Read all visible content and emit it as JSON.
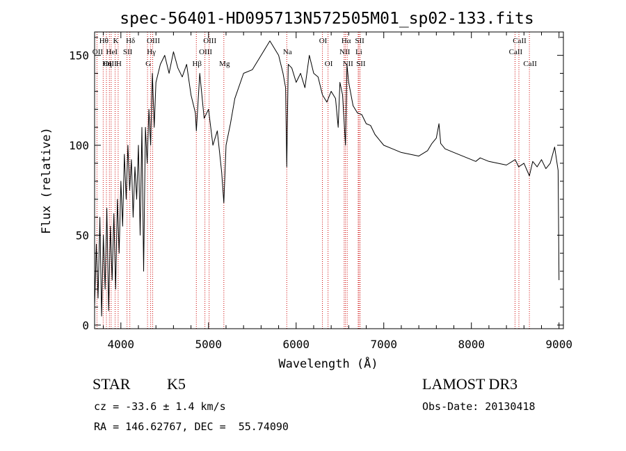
{
  "chart_data": {
    "type": "line",
    "title": "spec-56401-HD095713N572505M01_sp02-133.fits",
    "xlabel": "Wavelength (Å)",
    "ylabel": "Flux (relative)",
    "xlim": [
      3700,
      9050
    ],
    "ylim": [
      -2,
      163
    ],
    "xticks": [
      4000,
      5000,
      6000,
      7000,
      8000,
      9000
    ],
    "yticks": [
      0,
      50,
      100,
      150
    ],
    "line_color": "#000000",
    "marker_color": "#cc0000",
    "series": [
      {
        "x": [
          3700,
          3720,
          3740,
          3760,
          3780,
          3800,
          3820,
          3840,
          3860,
          3880,
          3900,
          3920,
          3940,
          3960,
          3980,
          4000,
          4020,
          4040,
          4060,
          4080,
          4100,
          4120,
          4140,
          4160,
          4180,
          4200,
          4220,
          4240,
          4260,
          4280,
          4300,
          4320,
          4340,
          4360,
          4380,
          4400,
          4450,
          4500,
          4550,
          4600,
          4650,
          4700,
          4750,
          4800,
          4850,
          4861,
          4900,
          4950,
          5000,
          5050,
          5100,
          5150,
          5175,
          5200,
          5250,
          5300,
          5400,
          5500,
          5600,
          5700,
          5800,
          5850,
          5880,
          5893,
          5910,
          5950,
          6000,
          6050,
          6100,
          6150,
          6200,
          6250,
          6300,
          6350,
          6400,
          6450,
          6480,
          6500,
          6530,
          6563,
          6580,
          6600,
          6650,
          6700,
          6750,
          6800,
          6850,
          6900,
          6950,
          7000,
          7100,
          7200,
          7300,
          7400,
          7500,
          7550,
          7600,
          7630,
          7650,
          7700,
          7800,
          7900,
          8000,
          8050,
          8100,
          8200,
          8300,
          8400,
          8500,
          8540,
          8600,
          8662,
          8700,
          8750,
          8800,
          8850,
          8900,
          8950,
          8990,
          9000
        ],
        "y": [
          10,
          45,
          15,
          60,
          5,
          50,
          20,
          65,
          8,
          55,
          25,
          62,
          20,
          70,
          40,
          80,
          55,
          95,
          70,
          100,
          75,
          92,
          60,
          88,
          70,
          100,
          50,
          110,
          30,
          110,
          90,
          120,
          100,
          140,
          110,
          135,
          145,
          150,
          140,
          152,
          143,
          138,
          145,
          128,
          118,
          108,
          140,
          115,
          120,
          100,
          108,
          85,
          68,
          100,
          112,
          126,
          140,
          142,
          150,
          158,
          150,
          140,
          132,
          88,
          145,
          143,
          135,
          140,
          132,
          150,
          140,
          138,
          128,
          124,
          130,
          126,
          110,
          135,
          128,
          100,
          145,
          135,
          122,
          118,
          117,
          112,
          111,
          106,
          103,
          100,
          98,
          96,
          95,
          94,
          97,
          101,
          104,
          112,
          101,
          98,
          96,
          94,
          92,
          91,
          93,
          91,
          90,
          89,
          92,
          88,
          90,
          83,
          91,
          88,
          92,
          87,
          90,
          99,
          86,
          25
        ]
      }
    ],
    "line_markers": [
      {
        "label": "Hθ",
        "x": 3798,
        "row": 1
      },
      {
        "label": "OII",
        "x": 3727,
        "row": 2
      },
      {
        "label": "OIII",
        "x": 3869,
        "row": 3
      },
      {
        "label": "K",
        "x": 3934,
        "row": 1
      },
      {
        "label": "HeI",
        "x": 3889,
        "row": 2
      },
      {
        "label": "Hη",
        "x": 3835,
        "row": 3
      },
      {
        "label": "H",
        "x": 3969,
        "row": 3
      },
      {
        "label": "Hδ",
        "x": 4102,
        "row": 1
      },
      {
        "label": "SII",
        "x": 4070,
        "row": 2
      },
      {
        "label": "OIII",
        "x": 4363,
        "row": 1
      },
      {
        "label": "Hγ",
        "x": 4340,
        "row": 2
      },
      {
        "label": "G",
        "x": 4304,
        "row": 3
      },
      {
        "label": "OIII",
        "x": 5007,
        "row": 1
      },
      {
        "label": "OIII",
        "x": 4959,
        "row": 2
      },
      {
        "label": "Hβ",
        "x": 4861,
        "row": 3
      },
      {
        "label": "Mg",
        "x": 5175,
        "row": 3
      },
      {
        "label": "Na",
        "x": 5893,
        "row": 2
      },
      {
        "label": "OI",
        "x": 6300,
        "row": 1
      },
      {
        "label": "OI",
        "x": 6364,
        "row": 3
      },
      {
        "label": "Hα",
        "x": 6563,
        "row": 1
      },
      {
        "label": "SII",
        "x": 6717,
        "row": 1
      },
      {
        "label": "NII",
        "x": 6548,
        "row": 2
      },
      {
        "label": "Li",
        "x": 6708,
        "row": 2
      },
      {
        "label": "NII",
        "x": 6583,
        "row": 3
      },
      {
        "label": "SII",
        "x": 6731,
        "row": 3
      },
      {
        "label": "CaII",
        "x": 8542,
        "row": 1
      },
      {
        "label": "CaII",
        "x": 8498,
        "row": 2
      },
      {
        "label": "CaII",
        "x": 8662,
        "row": 3
      }
    ]
  },
  "info": {
    "object_class": "STAR",
    "subclass": "K5",
    "survey": "LAMOST DR3",
    "redshift": "cz = -33.6 ± 1.4 km/s",
    "obs_date": "Obs-Date: 20130418",
    "coords": "RA = 146.62767, DEC =  55.74090"
  }
}
